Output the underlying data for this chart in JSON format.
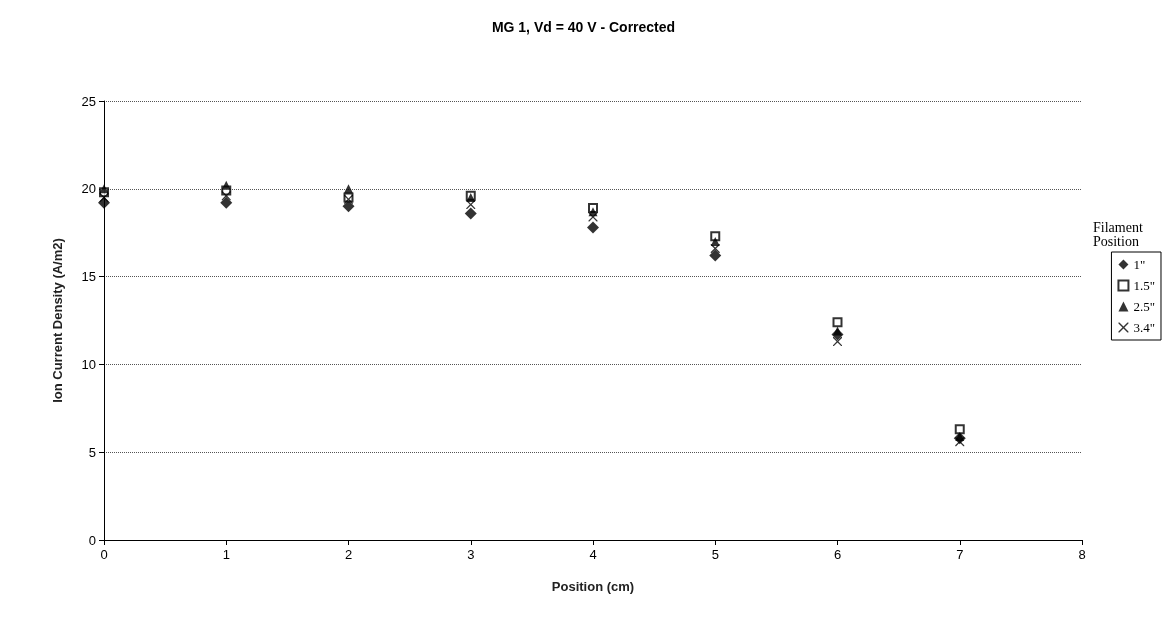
{
  "chart_data": {
    "type": "scatter",
    "title": "MG 1, Vd = 40 V - Corrected",
    "xlabel": "Position (cm)",
    "ylabel": "Ion Current Density (A/m2)",
    "legend_title": "Filament Position",
    "x": [
      0,
      1,
      2,
      3,
      4,
      5,
      6,
      7
    ],
    "series": [
      {
        "name": "1\"",
        "color": "#000000",
        "marker": "diamond",
        "values": [
          19.2,
          19.2,
          19.0,
          18.6,
          17.8,
          16.2,
          11.7,
          5.8
        ]
      },
      {
        "name": "1.5\"",
        "color": "#000000",
        "marker": "square",
        "values": [
          19.8,
          19.9,
          19.5,
          19.6,
          18.9,
          17.3,
          12.4,
          6.3
        ]
      },
      {
        "name": "2.5\"",
        "color": "#000000",
        "marker": "triangle",
        "values": [
          20.0,
          20.2,
          20.0,
          19.5,
          18.7,
          17.0,
          11.9,
          5.9
        ]
      },
      {
        "name": "3.4\"",
        "color": "#000000",
        "marker": "cross",
        "values": [
          19.5,
          19.6,
          19.4,
          19.1,
          18.4,
          16.6,
          11.3,
          5.6
        ]
      }
    ],
    "xlim": [
      0,
      8
    ],
    "xticks": [
      0,
      1,
      2,
      3,
      4,
      5,
      6,
      7,
      8
    ],
    "ylim": [
      0,
      25
    ],
    "yticks": [
      0,
      5,
      10,
      15,
      20,
      25
    ],
    "grid": "y",
    "legend": "right"
  }
}
